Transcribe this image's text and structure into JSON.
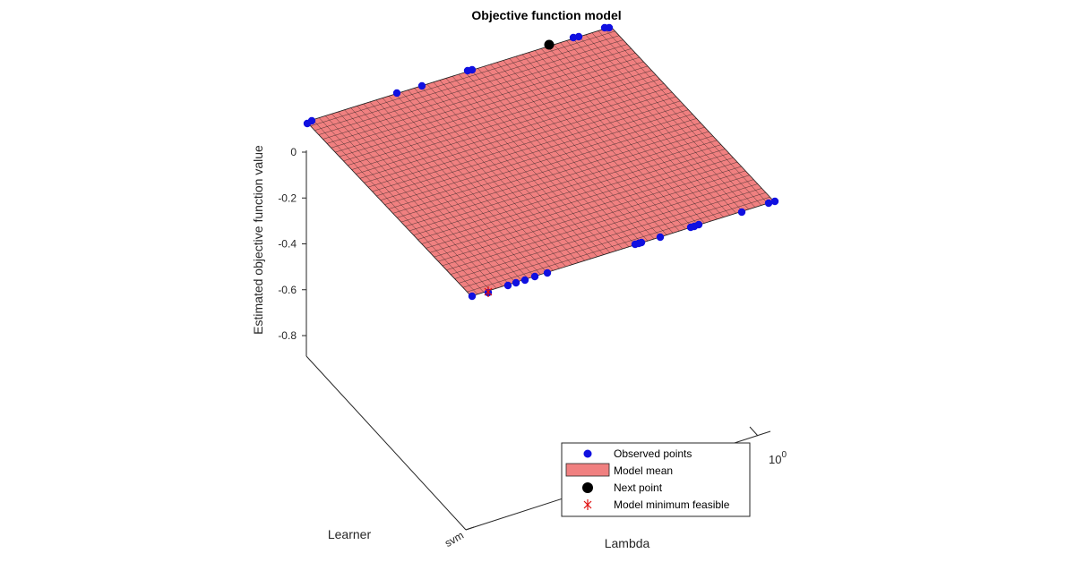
{
  "chart_data": {
    "type": "surface",
    "title": "Objective function model",
    "xlabel": "Learner",
    "ylabel": "Lambda",
    "zlabel": "Estimated objective function value",
    "x_tick_labels": [
      "svm"
    ],
    "y_tick_label_base": "10",
    "y_tick_label_exponent": "0",
    "z_ticks": [
      0,
      -0.2,
      -0.4,
      -0.6,
      -0.8
    ],
    "z_tick_labels": [
      "0",
      "-0.2",
      "-0.4",
      "-0.6",
      "-0.8"
    ],
    "grid": false,
    "legend_position": "bottom-right",
    "colors": {
      "surface_fill": "#f08080",
      "surface_edge": "#1a1a1a",
      "observed": "#1010e0",
      "next_point": "#000000",
      "model_min": "#e01010",
      "axis": "#262626"
    },
    "legend": [
      {
        "label": "Observed points",
        "marker": "blue-dot"
      },
      {
        "label": "Model mean",
        "marker": "salmon-patch"
      },
      {
        "label": "Next point",
        "marker": "black-dot"
      },
      {
        "label": "Model minimum feasible",
        "marker": "red-asterisk"
      }
    ]
  }
}
